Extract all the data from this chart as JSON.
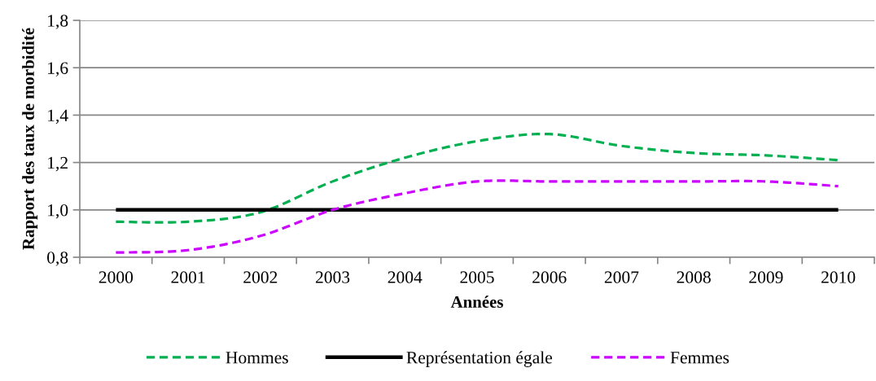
{
  "chart_data": {
    "type": "line",
    "ylabel": "Rapport des taux de morbidité",
    "xlabel": "Années",
    "categories": [
      "2000",
      "2001",
      "2002",
      "2003",
      "2004",
      "2005",
      "2006",
      "2007",
      "2008",
      "2009",
      "2010"
    ],
    "series": [
      {
        "name": "Hommes",
        "color": "#00b050",
        "line_style": "dashed",
        "values": [
          0.95,
          0.95,
          0.99,
          1.12,
          1.22,
          1.29,
          1.32,
          1.27,
          1.24,
          1.23,
          1.21
        ]
      },
      {
        "name": "Représentation égale",
        "color": "#000000",
        "line_style": "solid",
        "values": [
          1.0,
          1.0,
          1.0,
          1.0,
          1.0,
          1.0,
          1.0,
          1.0,
          1.0,
          1.0,
          1.0
        ]
      },
      {
        "name": "Femmes",
        "color": "#cc00ff",
        "line_style": "dashed",
        "values": [
          0.82,
          0.83,
          0.89,
          1.0,
          1.07,
          1.12,
          1.12,
          1.12,
          1.12,
          1.12,
          1.1
        ]
      }
    ],
    "ylim": [
      0.8,
      1.8
    ],
    "yticks": [
      {
        "value": 0.8,
        "label": "0,8"
      },
      {
        "value": 1.0,
        "label": "1,0"
      },
      {
        "value": 1.2,
        "label": "1,2"
      },
      {
        "value": 1.4,
        "label": "1,4"
      },
      {
        "value": 1.6,
        "label": "1,6"
      },
      {
        "value": 1.8,
        "label": "1,8"
      }
    ],
    "grid": "y",
    "legend": "bottom"
  }
}
